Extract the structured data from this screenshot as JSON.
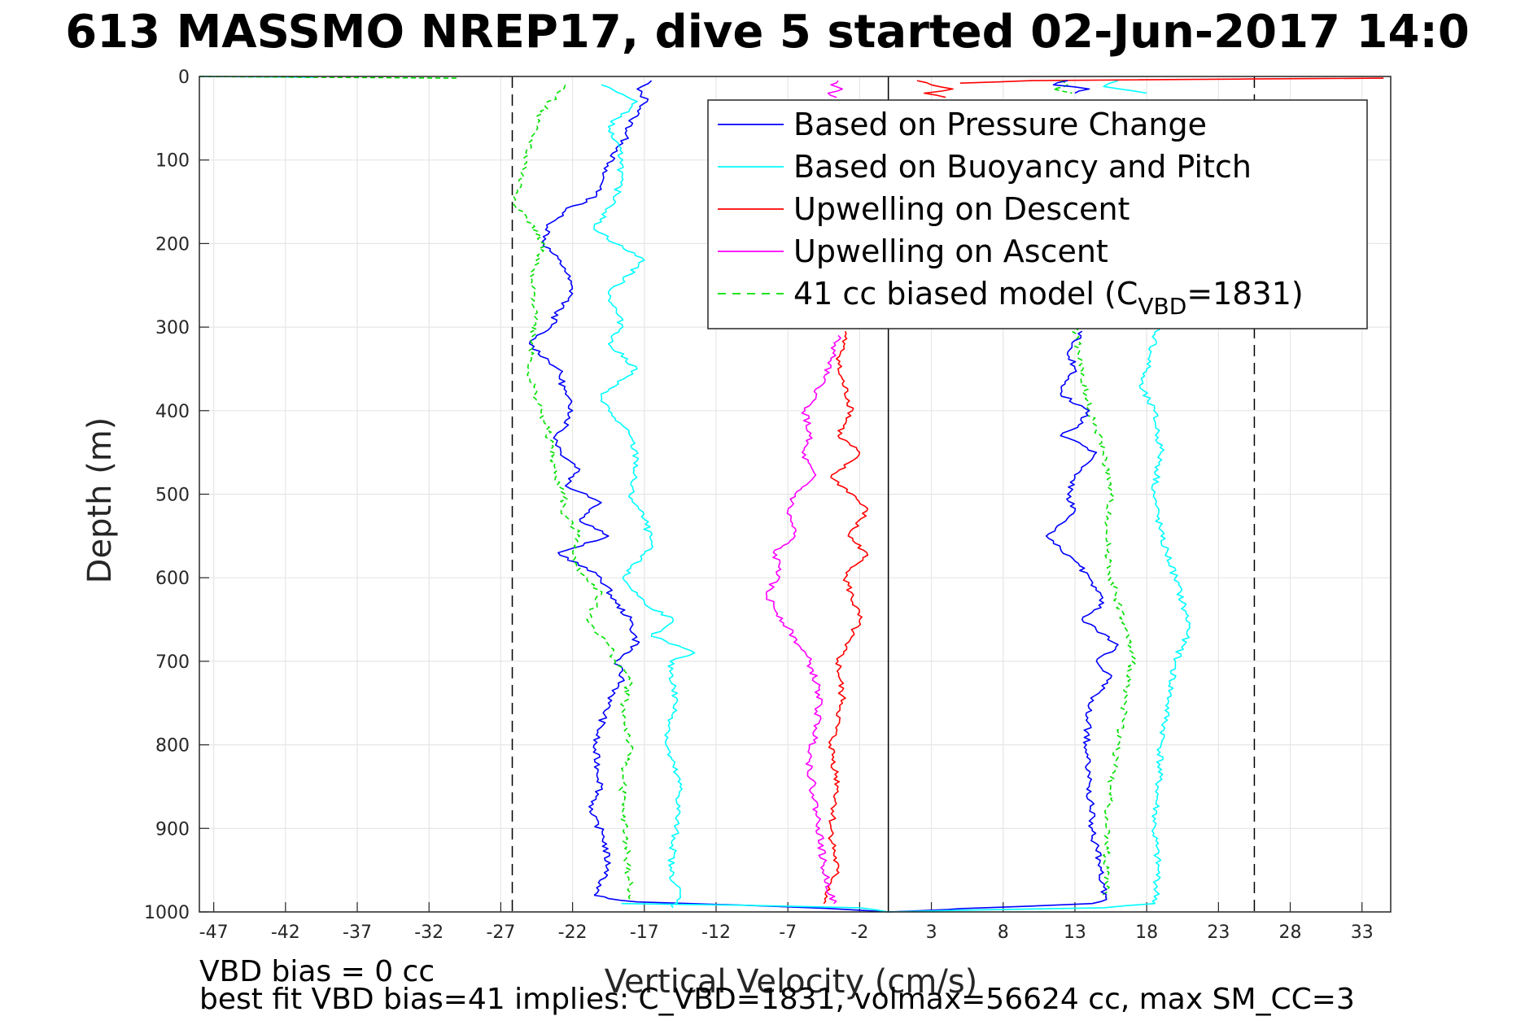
{
  "chart_data": {
    "type": "line",
    "title": "613 MASSMO NREP17, dive 5 started 02-Jun-2017 14:0",
    "xlabel": "Vertical Velocity (cm/s)",
    "ylabel": "Depth (m)",
    "xlim": [
      -48,
      35
    ],
    "ylim": [
      0,
      1000
    ],
    "y_reversed": true,
    "grid": true,
    "legend_position": "top-right",
    "xticks": [
      -47,
      -42,
      -37,
      -32,
      -27,
      -22,
      -17,
      -12,
      -7,
      -2,
      3,
      8,
      13,
      18,
      23,
      28,
      33
    ],
    "yticks": [
      0,
      100,
      200,
      300,
      400,
      500,
      600,
      700,
      800,
      900,
      1000
    ],
    "reference_lines": {
      "dashed_x": [
        -26.2,
        25.5
      ],
      "solid_x": [
        0
      ]
    },
    "series": [
      {
        "name": "Based on Pressure Change",
        "color": "#0000ff",
        "style": "solid",
        "legend_prefix": "",
        "legend_main": "Based on Pressure Change",
        "legend_sub": "",
        "legend_suffix": "",
        "segments": [
          {
            "x": [
              -16.5,
              -17.5,
              -16.8,
              -17.8,
              -18.5,
              -19.8,
              -20,
              -21,
              -22,
              -23.5,
              -24,
              -22.5,
              -22,
              -23,
              -23.5,
              -24.5,
              -25,
              -23,
              -22.5,
              -22,
              -22.5,
              -23.2,
              -22.8,
              -21.5,
              -22.5,
              -21,
              -20,
              -21.5,
              -19.5,
              -23,
              -20,
              -19,
              -18,
              -17.5,
              -19,
              -18.5,
              -19.5,
              -20.5,
              -20,
              -20.8,
              -19.8,
              -19.5,
              -20.5
            ],
            "y": [
              5,
              15,
              30,
              50,
              80,
              110,
              135,
              150,
              155,
              175,
              200,
              230,
              260,
              280,
              300,
              310,
              320,
              350,
              380,
              400,
              420,
              430,
              450,
              470,
              490,
              500,
              510,
              530,
              550,
              570,
              600,
              630,
              650,
              680,
              700,
              720,
              750,
              800,
              850,
              880,
              910,
              950,
              980
            ]
          },
          {
            "x": [
              -20.5,
              -19.5,
              -17.5,
              -10,
              -4,
              0
            ]
          }
        ]
      },
      {
        "name": "Based on Buoyancy and Pitch",
        "color": "#00ffff",
        "style": "solid",
        "legend_prefix": "",
        "legend_main": "Based on Buoyancy and Pitch",
        "legend_sub": "",
        "legend_suffix": "",
        "segments": [
          {
            "x": [
              -20,
              -17.5,
              -19.5,
              -18.5,
              -19,
              -20.5,
              -19,
              -17,
              -19.5,
              -18.5,
              -19.5,
              -17.5,
              -20,
              -19.5,
              -18,
              -17.5,
              -18,
              -17,
              -16.5,
              -18.5,
              -17,
              -15,
              -16.5,
              -13.5,
              -15.2,
              -14.8,
              -15.5,
              -14.5,
              -14.8,
              -15.2,
              -14.5,
              -15
            ],
            "y": [
              10,
              30,
              60,
              100,
              150,
              180,
              200,
              220,
              260,
              300,
              320,
              350,
              380,
              400,
              430,
              460,
              500,
              530,
              560,
              600,
              630,
              650,
              670,
              690,
              700,
              750,
              800,
              850,
              900,
              950,
              980,
              995
            ]
          },
          {
            "x": [
              18.8,
              18,
              17.5,
              18.5,
              19,
              18.5,
              19,
              20,
              21,
              20,
              19.5,
              19,
              18.8,
              18.5,
              18.8,
              18.6
            ],
            "y": [
              300,
              350,
              370,
              400,
              450,
              500,
              550,
              600,
              660,
              700,
              750,
              800,
              850,
              900,
              950,
              990
            ]
          },
          {
            "x": [
              -48,
              -40
            ],
            "y": [
              0,
              1
            ]
          },
          {
            "x": [
              16,
              15,
              18
            ],
            "y": [
              5,
              12,
              20
            ]
          }
        ]
      },
      {
        "name": "Upwelling on Descent",
        "color": "#ff0000",
        "style": "solid",
        "legend_prefix": "",
        "legend_main": "Upwelling on Descent",
        "legend_sub": "",
        "legend_suffix": "",
        "segments": [
          {
            "x": [
              -3,
              -3.5,
              -2.5,
              -3.5,
              -2,
              -4,
              -2.5,
              -1.5,
              -2.8,
              -1.5,
              -3,
              -2,
              -3,
              -3.5,
              -3.2,
              -4,
              -3.5,
              -4,
              -3.6,
              -4.5
            ],
            "y": [
              305,
              350,
              400,
              430,
              450,
              480,
              500,
              520,
              550,
              570,
              600,
              650,
              680,
              700,
              750,
              800,
              850,
              900,
              950,
              990
            ]
          },
          {
            "x": [
              2,
              3,
              4.5,
              2.5,
              4
            ],
            "y": [
              5,
              10,
              15,
              20,
              25
            ]
          },
          {
            "x": [
              34.5,
              25,
              10,
              5
            ],
            "y": [
              2,
              3,
              5,
              8
            ]
          }
        ]
      },
      {
        "name": "Upwelling on Ascent",
        "color": "#ff00ff",
        "style": "solid",
        "legend_prefix": "",
        "legend_main": "Upwelling on Ascent",
        "legend_sub": "",
        "legend_suffix": "",
        "segments": [
          {
            "x": [
              -3.5,
              -4,
              -4.5,
              -5,
              -5.8,
              -5.5,
              -6,
              -5.2,
              -6.5,
              -7,
              -6.5,
              -8,
              -7.5,
              -8.5,
              -7,
              -5.5,
              -4.8,
              -5,
              -5.5,
              -5.2,
              -4.8,
              -4.5,
              -3.8
            ],
            "y": [
              310,
              340,
              360,
              380,
              400,
              430,
              450,
              480,
              500,
              520,
              550,
              570,
              590,
              620,
              660,
              700,
              740,
              780,
              820,
              860,
              900,
              950,
              990
            ]
          },
          {
            "x": [
              -3.5,
              -4,
              -3.2,
              -4.2,
              -3.6
            ],
            "y": [
              5,
              10,
              15,
              20,
              25
            ]
          }
        ]
      },
      {
        "name": "41 cc biased model",
        "color": "#00e000",
        "style": "dashed",
        "legend_prefix": "41 cc biased model (C",
        "legend_main": "",
        "legend_sub": "VBD",
        "legend_suffix": "=1831)",
        "segments": [
          {
            "x": [
              -48,
              -40,
              -30
            ],
            "y": [
              0,
              1,
              2
            ]
          },
          {
            "x": [
              -22.5,
              -24.5,
              -26,
              -24,
              -25,
              -24.5,
              -24.8,
              -25,
              -24.2,
              -23.5,
              -23.2,
              -22.5,
              -22.8,
              -21.5,
              -22,
              -20,
              -21,
              -19.5,
              -19,
              -18,
              -18.5,
              -18,
              -18.5,
              -18.5,
              -18.2,
              -18
            ],
            "y": [
              10,
              50,
              150,
              200,
              240,
              280,
              320,
              360,
              400,
              440,
              480,
              500,
              520,
              550,
              580,
              620,
              650,
              680,
              700,
              720,
              760,
              800,
              840,
              880,
              930,
              985
            ]
          },
          {
            "x": [
              13,
              13.5,
              14,
              15,
              15.5,
              15.2,
              15.5,
              16,
              16.5,
              17,
              16.5,
              16,
              15.5,
              15.2,
              15.2
            ],
            "y": [
              300,
              360,
              400,
              450,
              500,
              550,
              600,
              630,
              660,
              700,
              750,
              800,
              850,
              900,
              985
            ]
          },
          {
            "x": [
              12,
              12.5,
              11.5,
              12.8
            ],
            "y": [
              5,
              10,
              15,
              20
            ]
          }
        ]
      }
    ],
    "blue_ascent_profile": {
      "x": [
        13.5,
        12.5,
        13,
        12,
        14,
        13.2,
        12,
        14.5,
        13,
        12.5,
        13,
        11,
        13,
        14,
        15,
        13.5,
        16,
        14.5,
        15.5,
        14,
        13.8,
        14,
        14.2,
        14.8,
        15,
        15.2,
        14.2,
        10,
        5,
        3,
        0
      ],
      "y": [
        305,
        330,
        350,
        380,
        400,
        420,
        430,
        450,
        480,
        500,
        520,
        550,
        580,
        600,
        630,
        650,
        680,
        700,
        720,
        750,
        800,
        850,
        900,
        950,
        970,
        985,
        990,
        993,
        996,
        998,
        1000
      ]
    },
    "blue_surface_segment": {
      "x": [
        12.5,
        11.5,
        14,
        13
      ],
      "y": [
        5,
        10,
        15,
        20
      ]
    },
    "cyan_bottom_segment": {
      "x": [
        -18.6,
        -10,
        -2,
        0,
        5,
        15,
        18.6
      ],
      "y": [
        990,
        992,
        995,
        1000,
        998,
        995,
        990
      ]
    }
  },
  "notes": {
    "line1": "VBD bias = 0 cc",
    "line2": "best fit VBD bias=41 implies: C_VBD=1831, volmax=56624 cc, max SM_CC=3"
  }
}
